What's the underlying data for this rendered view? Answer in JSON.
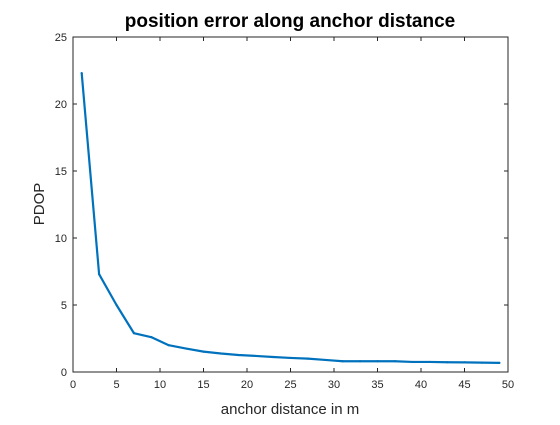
{
  "chart_data": {
    "type": "line",
    "title": "position error along anchor distance",
    "xlabel": "anchor distance in m",
    "ylabel": "PDOP",
    "xlim": [
      0,
      50
    ],
    "ylim": [
      0,
      25
    ],
    "xticks": [
      0,
      5,
      10,
      15,
      20,
      25,
      30,
      35,
      40,
      45,
      50
    ],
    "yticks": [
      0,
      5,
      10,
      15,
      20,
      25
    ],
    "grid": false,
    "series": [
      {
        "color": "#0072BD",
        "x": [
          1,
          3,
          5,
          7,
          9,
          11,
          13,
          15,
          17,
          19,
          21,
          23,
          25,
          27,
          29,
          31,
          33,
          35,
          37,
          39,
          41,
          43,
          45,
          47,
          49
        ],
        "y": [
          22.3,
          7.3,
          5.0,
          2.9,
          2.6,
          2.0,
          1.75,
          1.52,
          1.38,
          1.27,
          1.2,
          1.12,
          1.05,
          1.0,
          0.9,
          0.8,
          0.8,
          0.8,
          0.8,
          0.75,
          0.75,
          0.73,
          0.72,
          0.7,
          0.68
        ]
      }
    ]
  }
}
